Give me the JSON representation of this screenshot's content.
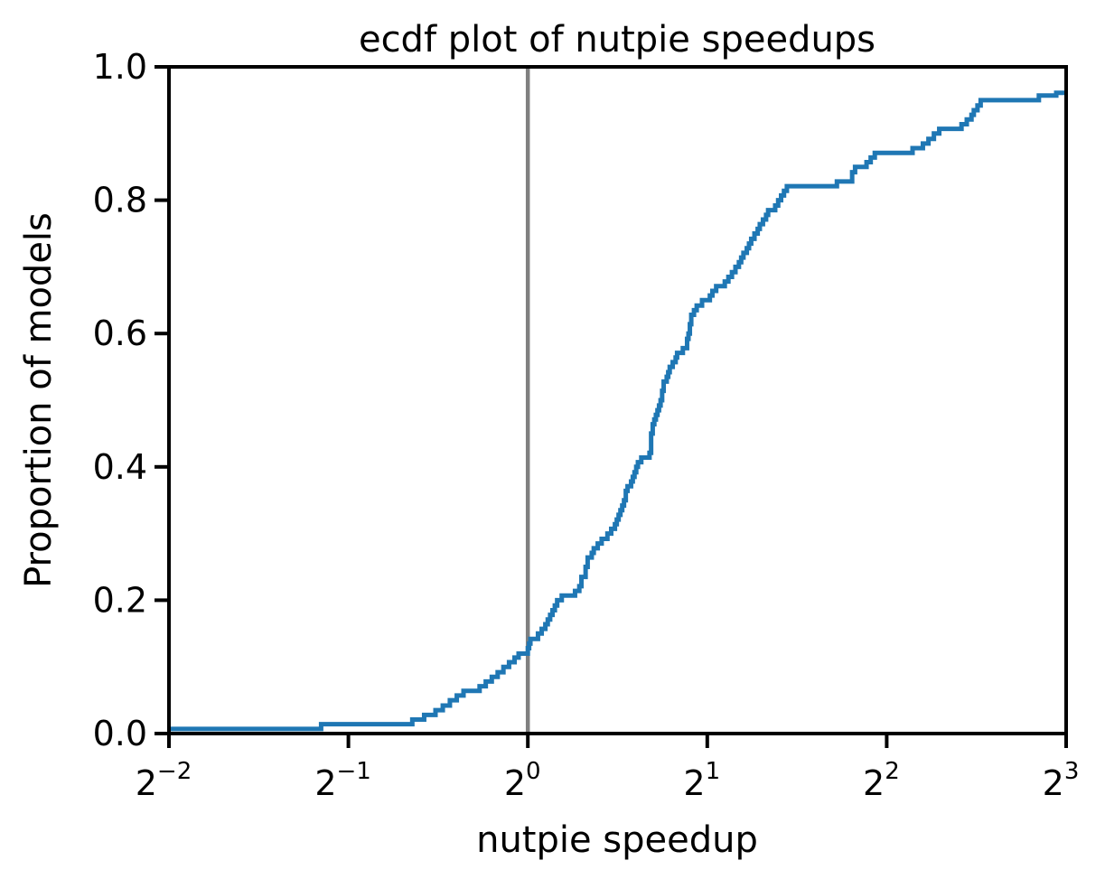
{
  "chart_data": {
    "type": "line",
    "title": "ecdf plot of nutpie speedups",
    "xlabel": "nutpie speedup",
    "ylabel": "Proportion of models",
    "x_scale": "log2",
    "xlim": [
      0.25,
      8
    ],
    "ylim": [
      0.0,
      1.0
    ],
    "x_ticks": [
      {
        "base": "2",
        "exp": "−2"
      },
      {
        "base": "2",
        "exp": "−1"
      },
      {
        "base": "2",
        "exp": "0"
      },
      {
        "base": "2",
        "exp": "1"
      },
      {
        "base": "2",
        "exp": "2"
      },
      {
        "base": "2",
        "exp": "3"
      }
    ],
    "y_ticks": [
      "0.0",
      "0.2",
      "0.4",
      "0.6",
      "0.8",
      "1.0"
    ],
    "reference_line": {
      "x": 1.0,
      "color": "#808080"
    },
    "grid": false,
    "legend": "none",
    "series": [
      {
        "color": "#1f77b4",
        "step": "post",
        "points": [
          [
            0.25,
            0.007
          ],
          [
            0.45,
            0.014
          ],
          [
            0.64,
            0.021
          ],
          [
            0.67,
            0.028
          ],
          [
            0.7,
            0.035
          ],
          [
            0.72,
            0.042
          ],
          [
            0.74,
            0.05
          ],
          [
            0.76,
            0.057
          ],
          [
            0.78,
            0.064
          ],
          [
            0.83,
            0.071
          ],
          [
            0.85,
            0.078
          ],
          [
            0.87,
            0.085
          ],
          [
            0.89,
            0.092
          ],
          [
            0.91,
            0.1
          ],
          [
            0.93,
            0.107
          ],
          [
            0.95,
            0.114
          ],
          [
            0.965,
            0.12
          ],
          [
            1.0,
            0.128
          ],
          [
            1.005,
            0.135
          ],
          [
            1.01,
            0.142
          ],
          [
            1.04,
            0.15
          ],
          [
            1.055,
            0.157
          ],
          [
            1.07,
            0.164
          ],
          [
            1.08,
            0.171
          ],
          [
            1.09,
            0.178
          ],
          [
            1.1,
            0.185
          ],
          [
            1.11,
            0.192
          ],
          [
            1.12,
            0.2
          ],
          [
            1.14,
            0.207
          ],
          [
            1.2,
            0.214
          ],
          [
            1.22,
            0.221
          ],
          [
            1.23,
            0.235
          ],
          [
            1.25,
            0.25
          ],
          [
            1.26,
            0.264
          ],
          [
            1.28,
            0.271
          ],
          [
            1.29,
            0.278
          ],
          [
            1.31,
            0.285
          ],
          [
            1.33,
            0.292
          ],
          [
            1.36,
            0.3
          ],
          [
            1.38,
            0.307
          ],
          [
            1.4,
            0.314
          ],
          [
            1.41,
            0.321
          ],
          [
            1.42,
            0.328
          ],
          [
            1.43,
            0.335
          ],
          [
            1.44,
            0.342
          ],
          [
            1.45,
            0.35
          ],
          [
            1.46,
            0.364
          ],
          [
            1.47,
            0.371
          ],
          [
            1.49,
            0.378
          ],
          [
            1.5,
            0.385
          ],
          [
            1.51,
            0.392
          ],
          [
            1.52,
            0.4
          ],
          [
            1.53,
            0.407
          ],
          [
            1.55,
            0.414
          ],
          [
            1.6,
            0.421
          ],
          [
            1.61,
            0.45
          ],
          [
            1.62,
            0.464
          ],
          [
            1.63,
            0.471
          ],
          [
            1.64,
            0.478
          ],
          [
            1.65,
            0.485
          ],
          [
            1.66,
            0.492
          ],
          [
            1.67,
            0.5
          ],
          [
            1.68,
            0.514
          ],
          [
            1.69,
            0.528
          ],
          [
            1.71,
            0.535
          ],
          [
            1.72,
            0.542
          ],
          [
            1.73,
            0.55
          ],
          [
            1.75,
            0.557
          ],
          [
            1.77,
            0.564
          ],
          [
            1.78,
            0.571
          ],
          [
            1.82,
            0.578
          ],
          [
            1.85,
            0.592
          ],
          [
            1.86,
            0.6
          ],
          [
            1.87,
            0.614
          ],
          [
            1.88,
            0.628
          ],
          [
            1.9,
            0.635
          ],
          [
            1.92,
            0.642
          ],
          [
            1.96,
            0.65
          ],
          [
            2.02,
            0.657
          ],
          [
            2.04,
            0.664
          ],
          [
            2.07,
            0.671
          ],
          [
            2.14,
            0.678
          ],
          [
            2.17,
            0.685
          ],
          [
            2.2,
            0.692
          ],
          [
            2.23,
            0.7
          ],
          [
            2.26,
            0.707
          ],
          [
            2.28,
            0.714
          ],
          [
            2.3,
            0.721
          ],
          [
            2.33,
            0.728
          ],
          [
            2.35,
            0.735
          ],
          [
            2.37,
            0.742
          ],
          [
            2.4,
            0.75
          ],
          [
            2.43,
            0.757
          ],
          [
            2.45,
            0.764
          ],
          [
            2.48,
            0.771
          ],
          [
            2.51,
            0.778
          ],
          [
            2.53,
            0.785
          ],
          [
            2.6,
            0.792
          ],
          [
            2.63,
            0.8
          ],
          [
            2.66,
            0.807
          ],
          [
            2.69,
            0.814
          ],
          [
            2.72,
            0.821
          ],
          [
            3.3,
            0.828
          ],
          [
            3.5,
            0.842
          ],
          [
            3.54,
            0.85
          ],
          [
            3.7,
            0.857
          ],
          [
            3.76,
            0.864
          ],
          [
            3.82,
            0.871
          ],
          [
            4.42,
            0.878
          ],
          [
            4.6,
            0.885
          ],
          [
            4.7,
            0.892
          ],
          [
            4.8,
            0.9
          ],
          [
            4.9,
            0.907
          ],
          [
            5.34,
            0.914
          ],
          [
            5.45,
            0.921
          ],
          [
            5.55,
            0.928
          ],
          [
            5.6,
            0.935
          ],
          [
            5.68,
            0.942
          ],
          [
            5.75,
            0.95
          ],
          [
            7.2,
            0.957
          ],
          [
            7.7,
            0.961
          ],
          [
            8.0,
            0.961
          ]
        ]
      }
    ]
  }
}
